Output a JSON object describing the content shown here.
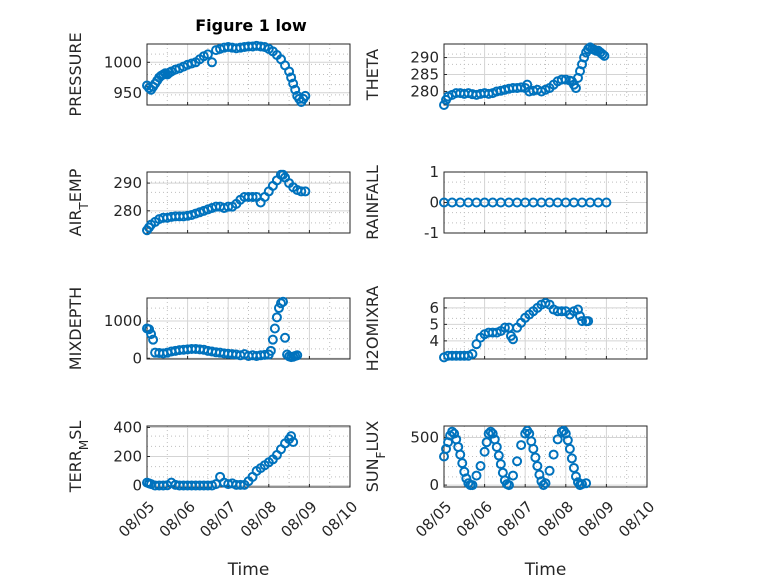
{
  "title": "Figure 1 low",
  "xlabel": "Time",
  "x_ticks": [
    "08/05",
    "08/06",
    "08/07",
    "08/08",
    "08/09",
    "08/10"
  ],
  "marker_color": "#0072bd",
  "chart_data": [
    {
      "type": "scatter",
      "ylabel": "PRESSURE",
      "yticks": [
        950,
        1000
      ],
      "ylim": [
        930,
        1030
      ],
      "grid": true,
      "points": [
        [
          0.0,
          962
        ],
        [
          0.05,
          958
        ],
        [
          0.1,
          955
        ],
        [
          0.15,
          960
        ],
        [
          0.2,
          965
        ],
        [
          0.25,
          970
        ],
        [
          0.3,
          975
        ],
        [
          0.35,
          978
        ],
        [
          0.4,
          980
        ],
        [
          0.45,
          982
        ],
        [
          0.5,
          980
        ],
        [
          0.55,
          983
        ],
        [
          0.6,
          985
        ],
        [
          0.7,
          988
        ],
        [
          0.8,
          990
        ],
        [
          0.9,
          993
        ],
        [
          1.0,
          996
        ],
        [
          1.1,
          998
        ],
        [
          1.2,
          1000
        ],
        [
          1.3,
          1005
        ],
        [
          1.4,
          1010
        ],
        [
          1.5,
          1013
        ],
        [
          1.6,
          1000
        ],
        [
          1.7,
          1020
        ],
        [
          1.8,
          1022
        ],
        [
          1.9,
          1024
        ],
        [
          2.0,
          1025
        ],
        [
          2.1,
          1024
        ],
        [
          2.2,
          1023
        ],
        [
          2.3,
          1024
        ],
        [
          2.4,
          1025
        ],
        [
          2.5,
          1026
        ],
        [
          2.6,
          1026
        ],
        [
          2.7,
          1027
        ],
        [
          2.8,
          1026
        ],
        [
          2.9,
          1025
        ],
        [
          3.0,
          1022
        ],
        [
          3.1,
          1018
        ],
        [
          3.2,
          1012
        ],
        [
          3.3,
          1005
        ],
        [
          3.4,
          995
        ],
        [
          3.5,
          985
        ],
        [
          3.55,
          975
        ],
        [
          3.6,
          965
        ],
        [
          3.65,
          955
        ],
        [
          3.7,
          945
        ],
        [
          3.75,
          940
        ],
        [
          3.8,
          935
        ],
        [
          3.85,
          940
        ],
        [
          3.9,
          945
        ]
      ]
    },
    {
      "type": "scatter",
      "ylabel": "THETA",
      "yticks": [
        280,
        285,
        290
      ],
      "ylim": [
        276,
        294
      ],
      "grid": true,
      "points": [
        [
          0.0,
          276
        ],
        [
          0.05,
          277.5
        ],
        [
          0.1,
          278.5
        ],
        [
          0.2,
          279
        ],
        [
          0.3,
          279.5
        ],
        [
          0.4,
          279.5
        ],
        [
          0.5,
          279.3
        ],
        [
          0.6,
          279.5
        ],
        [
          0.7,
          279.2
        ],
        [
          0.8,
          279.0
        ],
        [
          0.9,
          279.3
        ],
        [
          1.0,
          279.5
        ],
        [
          1.1,
          279.3
        ],
        [
          1.2,
          279.5
        ],
        [
          1.3,
          280
        ],
        [
          1.4,
          280.2
        ],
        [
          1.5,
          280.5
        ],
        [
          1.6,
          280.8
        ],
        [
          1.7,
          281
        ],
        [
          1.8,
          281
        ],
        [
          1.9,
          281.2
        ],
        [
          2.0,
          281
        ],
        [
          2.05,
          282
        ],
        [
          2.1,
          280
        ],
        [
          2.2,
          280.2
        ],
        [
          2.3,
          280.5
        ],
        [
          2.4,
          280
        ],
        [
          2.5,
          280.5
        ],
        [
          2.6,
          281
        ],
        [
          2.7,
          282
        ],
        [
          2.8,
          283
        ],
        [
          2.9,
          283.5
        ],
        [
          3.0,
          283.5
        ],
        [
          3.1,
          283.2
        ],
        [
          3.15,
          283
        ],
        [
          3.2,
          282
        ],
        [
          3.25,
          281
        ],
        [
          3.3,
          284
        ],
        [
          3.35,
          286
        ],
        [
          3.4,
          288
        ],
        [
          3.45,
          290
        ],
        [
          3.5,
          291.5
        ],
        [
          3.55,
          292.5
        ],
        [
          3.6,
          293
        ],
        [
          3.65,
          292.5
        ],
        [
          3.7,
          292.3
        ],
        [
          3.75,
          292
        ],
        [
          3.8,
          292
        ],
        [
          3.85,
          291.5
        ],
        [
          3.9,
          291
        ],
        [
          3.95,
          290.5
        ]
      ]
    },
    {
      "type": "scatter",
      "ylabel": "AIR_TEMP",
      "yticks": [
        280,
        290
      ],
      "ylim": [
        272,
        294
      ],
      "grid": true,
      "points": [
        [
          0.0,
          273
        ],
        [
          0.05,
          274
        ],
        [
          0.1,
          275
        ],
        [
          0.2,
          276
        ],
        [
          0.3,
          277
        ],
        [
          0.4,
          277.5
        ],
        [
          0.5,
          277.5
        ],
        [
          0.6,
          277.8
        ],
        [
          0.7,
          278
        ],
        [
          0.8,
          278
        ],
        [
          0.9,
          278
        ],
        [
          1.0,
          278.2
        ],
        [
          1.1,
          278.5
        ],
        [
          1.2,
          279
        ],
        [
          1.3,
          279.5
        ],
        [
          1.4,
          280
        ],
        [
          1.5,
          280.5
        ],
        [
          1.6,
          281
        ],
        [
          1.7,
          281.5
        ],
        [
          1.8,
          281.5
        ],
        [
          1.9,
          281
        ],
        [
          2.0,
          281.5
        ],
        [
          2.1,
          281.5
        ],
        [
          2.2,
          282.5
        ],
        [
          2.3,
          284
        ],
        [
          2.4,
          285
        ],
        [
          2.5,
          285
        ],
        [
          2.6,
          285
        ],
        [
          2.7,
          285
        ],
        [
          2.8,
          283
        ],
        [
          2.9,
          285
        ],
        [
          3.0,
          287
        ],
        [
          3.1,
          289
        ],
        [
          3.2,
          291
        ],
        [
          3.3,
          293
        ],
        [
          3.35,
          293
        ],
        [
          3.4,
          292
        ],
        [
          3.5,
          290
        ],
        [
          3.6,
          288.5
        ],
        [
          3.7,
          287.5
        ],
        [
          3.8,
          287
        ],
        [
          3.9,
          287
        ]
      ]
    },
    {
      "type": "scatter",
      "ylabel": "RAINFALL",
      "yticks": [
        -1,
        0,
        1
      ],
      "ylim": [
        -1,
        1
      ],
      "grid": true,
      "points": [
        [
          0.0,
          0
        ],
        [
          0.2,
          0
        ],
        [
          0.4,
          0
        ],
        [
          0.6,
          0
        ],
        [
          0.8,
          0
        ],
        [
          1.0,
          0
        ],
        [
          1.2,
          0
        ],
        [
          1.4,
          0
        ],
        [
          1.6,
          0
        ],
        [
          1.8,
          0
        ],
        [
          2.0,
          0
        ],
        [
          2.2,
          0
        ],
        [
          2.4,
          0
        ],
        [
          2.6,
          0
        ],
        [
          2.8,
          0
        ],
        [
          3.0,
          0
        ],
        [
          3.2,
          0
        ],
        [
          3.4,
          0
        ],
        [
          3.6,
          0
        ],
        [
          3.8,
          0
        ],
        [
          4.0,
          0
        ]
      ]
    },
    {
      "type": "scatter",
      "ylabel": "MIXDEPTH",
      "yticks": [
        0,
        1000
      ],
      "ylim": [
        -20,
        1620
      ],
      "grid": true,
      "points": [
        [
          0.0,
          800
        ],
        [
          0.05,
          780
        ],
        [
          0.1,
          650
        ],
        [
          0.15,
          500
        ],
        [
          0.2,
          150
        ],
        [
          0.3,
          140
        ],
        [
          0.4,
          130
        ],
        [
          0.5,
          150
        ],
        [
          0.6,
          180
        ],
        [
          0.7,
          200
        ],
        [
          0.8,
          220
        ],
        [
          0.9,
          230
        ],
        [
          1.0,
          240
        ],
        [
          1.1,
          250
        ],
        [
          1.2,
          250
        ],
        [
          1.3,
          240
        ],
        [
          1.4,
          230
        ],
        [
          1.5,
          200
        ],
        [
          1.6,
          180
        ],
        [
          1.7,
          160
        ],
        [
          1.8,
          150
        ],
        [
          1.9,
          130
        ],
        [
          2.0,
          120
        ],
        [
          2.1,
          110
        ],
        [
          2.2,
          100
        ],
        [
          2.3,
          80
        ],
        [
          2.4,
          110
        ],
        [
          2.5,
          60
        ],
        [
          2.6,
          80
        ],
        [
          2.7,
          60
        ],
        [
          2.8,
          80
        ],
        [
          2.9,
          90
        ],
        [
          3.0,
          100
        ],
        [
          3.05,
          200
        ],
        [
          3.1,
          500
        ],
        [
          3.15,
          800
        ],
        [
          3.2,
          1100
        ],
        [
          3.25,
          1350
        ],
        [
          3.3,
          1480
        ],
        [
          3.35,
          1520
        ],
        [
          3.4,
          550
        ],
        [
          3.45,
          100
        ],
        [
          3.5,
          50
        ],
        [
          3.55,
          30
        ],
        [
          3.6,
          40
        ],
        [
          3.65,
          60
        ],
        [
          3.7,
          80
        ]
      ]
    },
    {
      "type": "scatter",
      "ylabel": "H2OMIXRA",
      "yticks": [
        4,
        5,
        6
      ],
      "ylim": [
        2.9,
        6.6
      ],
      "grid": true,
      "points": [
        [
          0.0,
          3.0
        ],
        [
          0.1,
          3.1
        ],
        [
          0.2,
          3.1
        ],
        [
          0.3,
          3.1
        ],
        [
          0.4,
          3.1
        ],
        [
          0.5,
          3.1
        ],
        [
          0.6,
          3.1
        ],
        [
          0.7,
          3.2
        ],
        [
          0.8,
          3.8
        ],
        [
          0.9,
          4.2
        ],
        [
          1.0,
          4.4
        ],
        [
          1.1,
          4.5
        ],
        [
          1.2,
          4.5
        ],
        [
          1.3,
          4.5
        ],
        [
          1.4,
          4.6
        ],
        [
          1.5,
          4.8
        ],
        [
          1.6,
          4.8
        ],
        [
          1.65,
          4.3
        ],
        [
          1.7,
          4.1
        ],
        [
          1.8,
          4.8
        ],
        [
          1.9,
          5.1
        ],
        [
          2.0,
          5.4
        ],
        [
          2.1,
          5.6
        ],
        [
          2.2,
          5.8
        ],
        [
          2.3,
          6.0
        ],
        [
          2.4,
          6.2
        ],
        [
          2.5,
          6.3
        ],
        [
          2.6,
          6.2
        ],
        [
          2.7,
          5.9
        ],
        [
          2.8,
          5.8
        ],
        [
          2.9,
          5.8
        ],
        [
          3.0,
          5.8
        ],
        [
          3.1,
          5.6
        ],
        [
          3.2,
          5.8
        ],
        [
          3.3,
          5.9
        ],
        [
          3.35,
          5.5
        ],
        [
          3.4,
          5.2
        ],
        [
          3.5,
          5.2
        ],
        [
          3.55,
          5.2
        ]
      ]
    },
    {
      "type": "scatter",
      "ylabel": "TERR_MSL",
      "yticks": [
        0,
        200,
        400
      ],
      "ylim": [
        -10,
        410
      ],
      "grid": true,
      "points": [
        [
          0.0,
          20
        ],
        [
          0.05,
          15
        ],
        [
          0.1,
          10
        ],
        [
          0.2,
          0
        ],
        [
          0.3,
          0
        ],
        [
          0.4,
          0
        ],
        [
          0.5,
          2
        ],
        [
          0.6,
          20
        ],
        [
          0.7,
          5
        ],
        [
          0.8,
          0
        ],
        [
          0.9,
          0
        ],
        [
          1.0,
          0
        ],
        [
          1.1,
          0
        ],
        [
          1.2,
          0
        ],
        [
          1.3,
          0
        ],
        [
          1.4,
          0
        ],
        [
          1.5,
          0
        ],
        [
          1.6,
          0
        ],
        [
          1.7,
          10
        ],
        [
          1.8,
          60
        ],
        [
          1.9,
          20
        ],
        [
          2.0,
          10
        ],
        [
          2.1,
          15
        ],
        [
          2.2,
          5
        ],
        [
          2.3,
          5
        ],
        [
          2.4,
          5
        ],
        [
          2.5,
          30
        ],
        [
          2.6,
          60
        ],
        [
          2.7,
          100
        ],
        [
          2.8,
          120
        ],
        [
          2.9,
          140
        ],
        [
          3.0,
          160
        ],
        [
          3.1,
          180
        ],
        [
          3.2,
          210
        ],
        [
          3.3,
          250
        ],
        [
          3.4,
          290
        ],
        [
          3.5,
          320
        ],
        [
          3.55,
          340
        ],
        [
          3.6,
          300
        ]
      ]
    },
    {
      "type": "scatter",
      "ylabel": "SUN_FLUX",
      "yticks": [
        0,
        500
      ],
      "ylim": [
        -20,
        620
      ],
      "grid": true,
      "points": [
        [
          0.0,
          300
        ],
        [
          0.05,
          380
        ],
        [
          0.1,
          450
        ],
        [
          0.15,
          520
        ],
        [
          0.2,
          560
        ],
        [
          0.25,
          540
        ],
        [
          0.3,
          480
        ],
        [
          0.35,
          400
        ],
        [
          0.4,
          320
        ],
        [
          0.45,
          230
        ],
        [
          0.5,
          140
        ],
        [
          0.55,
          70
        ],
        [
          0.6,
          20
        ],
        [
          0.65,
          0
        ],
        [
          0.7,
          0
        ],
        [
          0.8,
          100
        ],
        [
          0.9,
          200
        ],
        [
          1.0,
          350
        ],
        [
          1.05,
          450
        ],
        [
          1.1,
          540
        ],
        [
          1.15,
          560
        ],
        [
          1.2,
          540
        ],
        [
          1.25,
          480
        ],
        [
          1.3,
          400
        ],
        [
          1.35,
          310
        ],
        [
          1.4,
          220
        ],
        [
          1.45,
          130
        ],
        [
          1.5,
          50
        ],
        [
          1.55,
          10
        ],
        [
          1.6,
          0
        ],
        [
          1.7,
          100
        ],
        [
          1.8,
          250
        ],
        [
          1.9,
          420
        ],
        [
          2.0,
          540
        ],
        [
          2.05,
          570
        ],
        [
          2.1,
          540
        ],
        [
          2.15,
          460
        ],
        [
          2.2,
          380
        ],
        [
          2.25,
          290
        ],
        [
          2.3,
          200
        ],
        [
          2.35,
          110
        ],
        [
          2.4,
          40
        ],
        [
          2.45,
          0
        ],
        [
          2.5,
          20
        ],
        [
          2.6,
          150
        ],
        [
          2.7,
          320
        ],
        [
          2.8,
          480
        ],
        [
          2.9,
          560
        ],
        [
          2.95,
          570
        ],
        [
          3.0,
          540
        ],
        [
          3.05,
          470
        ],
        [
          3.1,
          380
        ],
        [
          3.15,
          280
        ],
        [
          3.2,
          180
        ],
        [
          3.25,
          90
        ],
        [
          3.3,
          30
        ],
        [
          3.35,
          0
        ],
        [
          3.4,
          10
        ],
        [
          3.5,
          20
        ]
      ]
    }
  ]
}
